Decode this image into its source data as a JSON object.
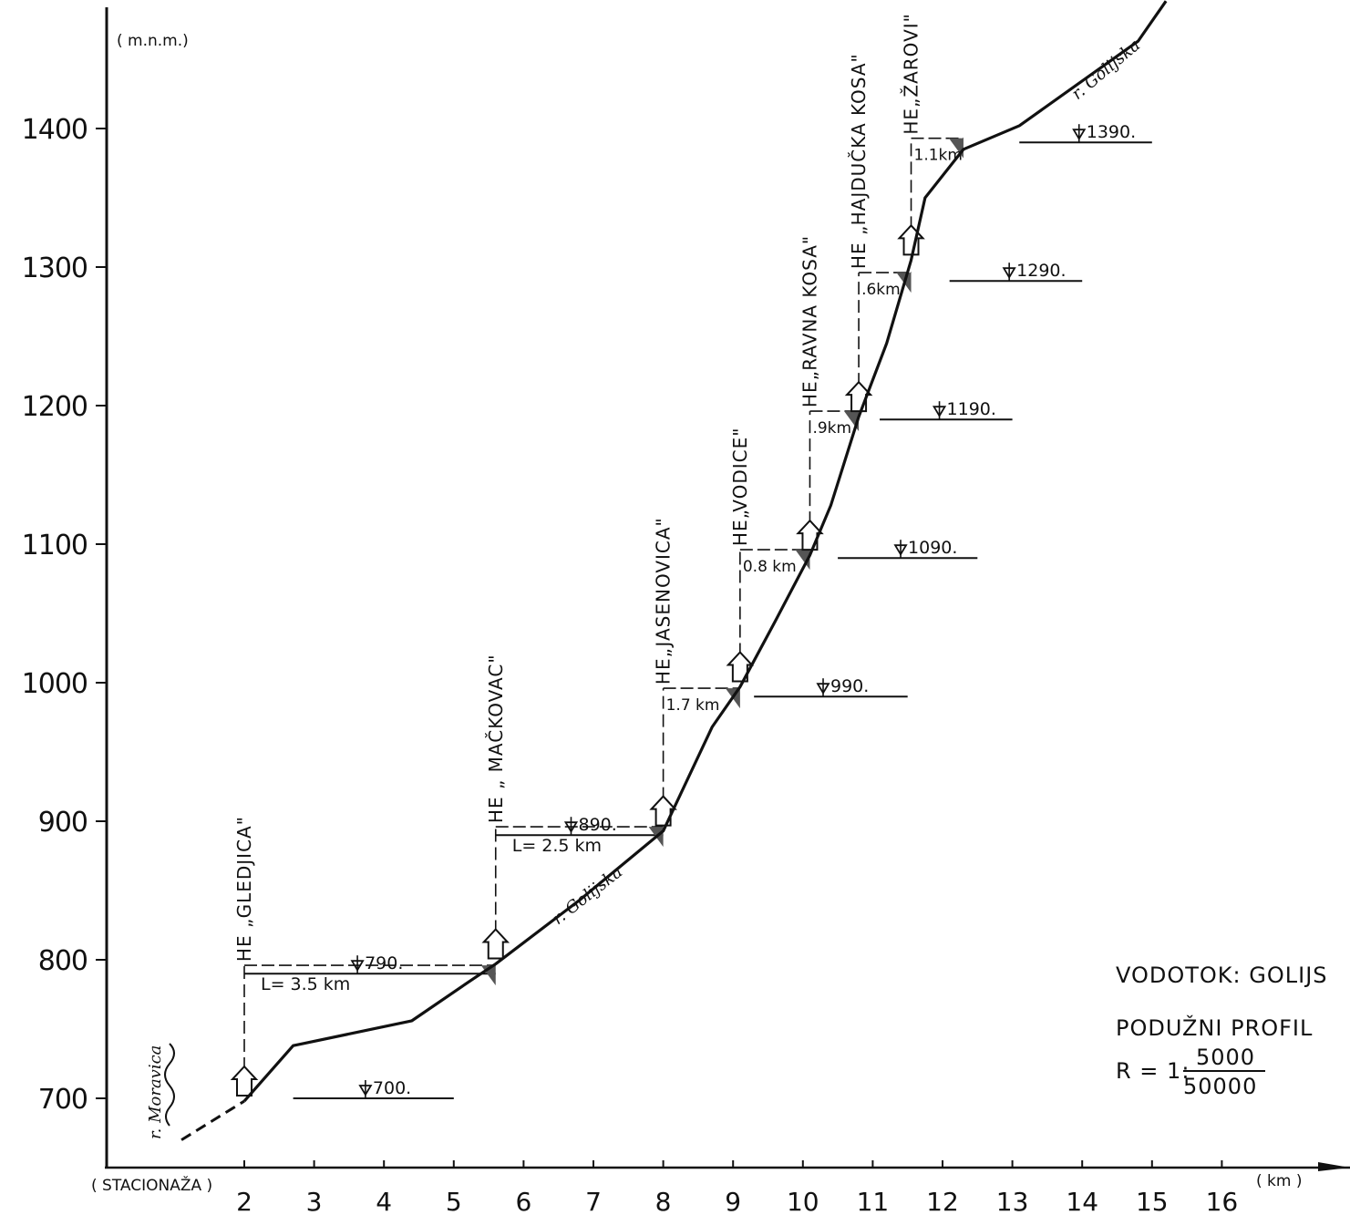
{
  "chart_data": {
    "type": "line",
    "title": "",
    "ylabel": "( m.n.m.)",
    "xlabel": "( km )",
    "x_axis_name": "( STACIONAŽA )",
    "ylim": [
      650,
      1480
    ],
    "xlim": [
      0.3,
      17
    ],
    "y_ticks": [
      {
        "value": 700,
        "label": "700"
      },
      {
        "value": 800,
        "label": "800"
      },
      {
        "value": 900,
        "label": "900"
      },
      {
        "value": 1000,
        "label": "1000"
      },
      {
        "value": 1100,
        "label": "1100"
      },
      {
        "value": 1200,
        "label": "1200"
      },
      {
        "value": 1300,
        "label": "1300"
      },
      {
        "value": 1400,
        "label": "1400"
      }
    ],
    "x_ticks": [
      {
        "value": 2,
        "label": "2"
      },
      {
        "value": 3,
        "label": "3"
      },
      {
        "value": 4,
        "label": "4"
      },
      {
        "value": 5,
        "label": "5"
      },
      {
        "value": 6,
        "label": "6"
      },
      {
        "value": 7,
        "label": "7"
      },
      {
        "value": 8,
        "label": "8"
      },
      {
        "value": 9,
        "label": "9"
      },
      {
        "value": 10,
        "label": "10"
      },
      {
        "value": 11,
        "label": "11"
      },
      {
        "value": 12,
        "label": "12"
      },
      {
        "value": 13,
        "label": "13"
      },
      {
        "value": 14,
        "label": "14"
      },
      {
        "value": 15,
        "label": "15"
      },
      {
        "value": 16,
        "label": "16"
      }
    ],
    "profile_dashed": [
      {
        "x": 1.1,
        "y": 670
      },
      {
        "x": 2.0,
        "y": 698
      }
    ],
    "profile": [
      {
        "x": 2.0,
        "y": 698
      },
      {
        "x": 2.7,
        "y": 738
      },
      {
        "x": 4.4,
        "y": 756
      },
      {
        "x": 5.3,
        "y": 787
      },
      {
        "x": 5.6,
        "y": 797
      },
      {
        "x": 6.8,
        "y": 843
      },
      {
        "x": 8.0,
        "y": 893
      },
      {
        "x": 8.7,
        "y": 968
      },
      {
        "x": 9.1,
        "y": 997
      },
      {
        "x": 9.6,
        "y": 1044
      },
      {
        "x": 10.1,
        "y": 1092
      },
      {
        "x": 10.4,
        "y": 1128
      },
      {
        "x": 10.8,
        "y": 1192
      },
      {
        "x": 11.2,
        "y": 1245
      },
      {
        "x": 11.55,
        "y": 1305
      },
      {
        "x": 11.75,
        "y": 1350
      },
      {
        "x": 12.3,
        "y": 1385
      },
      {
        "x": 13.1,
        "y": 1402
      },
      {
        "x": 14.8,
        "y": 1463
      },
      {
        "x": 15.2,
        "y": 1492
      }
    ],
    "reference_levels": [
      {
        "y": 700,
        "label": "700.",
        "x_start": 2.7,
        "x_end": 5.0
      },
      {
        "y": 790,
        "label": "790.",
        "x_start": 2.0,
        "x_end": 5.6
      },
      {
        "y": 890,
        "label": "890.",
        "x_start": 5.6,
        "x_end": 8.0
      },
      {
        "y": 990,
        "label": "990.",
        "x_start": 9.3,
        "x_end": 11.5
      },
      {
        "y": 1090,
        "label": "1090.",
        "x_start": 10.5,
        "x_end": 12.5
      },
      {
        "y": 1190,
        "label": "1190.",
        "x_start": 11.1,
        "x_end": 13.0
      },
      {
        "y": 1290,
        "label": "1290.",
        "x_start": 12.1,
        "x_end": 14.0
      },
      {
        "y": 1390,
        "label": "1390.",
        "x_start": 13.1,
        "x_end": 15.0
      }
    ],
    "plants": [
      {
        "name": "HE „GLEDJICA\"",
        "label_len": 210,
        "outlet_x": 2.0,
        "outlet_y": 698,
        "head_y": 796,
        "intake_x": 5.6,
        "reach_label": "L= 3.5 km",
        "level_label": "790."
      },
      {
        "name": "HE „ MAČKOVAC\"",
        "label_len": 180,
        "outlet_x": 5.6,
        "outlet_y": 797,
        "head_y": 896,
        "intake_x": 8.0,
        "reach_label": "L= 2.5 km",
        "level_label": "890."
      },
      {
        "name": "HE„JASENOVICA\"",
        "label_len": 170,
        "outlet_x": 8.0,
        "outlet_y": 893,
        "head_y": 996,
        "intake_x": 9.1,
        "reach_label": "1.7 km",
        "level_label": ""
      },
      {
        "name": "HE„VODICE\"",
        "label_len": 138,
        "outlet_x": 9.1,
        "outlet_y": 997,
        "head_y": 1096,
        "intake_x": 10.1,
        "reach_label": "0.8 km",
        "level_label": ""
      },
      {
        "name": "HE„RAVNA  KOSA\"",
        "label_len": 200,
        "outlet_x": 10.1,
        "outlet_y": 1092,
        "head_y": 1196,
        "intake_x": 10.8,
        "reach_label": ".9km",
        "level_label": ""
      },
      {
        "name": "HE „HAJDUČKA  KOSA\"",
        "label_len": 270,
        "outlet_x": 10.8,
        "outlet_y": 1192,
        "head_y": 1296,
        "intake_x": 11.55,
        "reach_label": ".6km",
        "level_label": ""
      },
      {
        "name": "HE„ŽAROVI\"",
        "label_len": 150,
        "outlet_x": 11.55,
        "outlet_y": 1305,
        "head_y": 1393,
        "intake_x": 12.3,
        "reach_label": "1.1km",
        "level_label": ""
      }
    ],
    "annotations": {
      "river_morava": "r. Moravica",
      "river_golijska_1": "r. Golijska",
      "river_golijska_2": "r. Golijska"
    },
    "grid": false,
    "legend": "none"
  },
  "caption": {
    "line1": "VODOTOK: GOLIJS",
    "line2": "PODUŽNI  PROFIL",
    "scale_prefix": "R = 1:",
    "scale_num": "5000",
    "scale_den": "50000"
  }
}
